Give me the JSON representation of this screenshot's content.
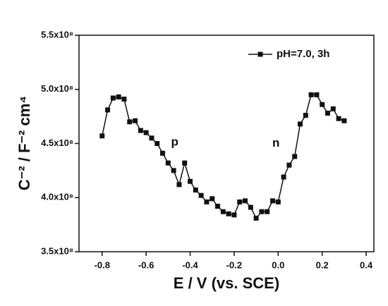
{
  "chart_data": {
    "type": "line",
    "x_label": "E / V (vs. SCE)",
    "y_label": "C⁻² / F⁻² cm⁴",
    "annotations": [
      {
        "text": "p",
        "x": -0.47,
        "y": 451000000
      },
      {
        "text": "n",
        "x": -0.01,
        "y": 450000000
      }
    ],
    "legend": "top-right",
    "x": [
      -0.8,
      -0.775,
      -0.75,
      -0.725,
      -0.7,
      -0.675,
      -0.65,
      -0.625,
      -0.6,
      -0.575,
      -0.55,
      -0.525,
      -0.5,
      -0.475,
      -0.45,
      -0.425,
      -0.4,
      -0.375,
      -0.35,
      -0.325,
      -0.3,
      -0.275,
      -0.25,
      -0.225,
      -0.2,
      -0.175,
      -0.15,
      -0.125,
      -0.1,
      -0.075,
      -0.05,
      -0.025,
      0,
      0.025,
      0.05,
      0.075,
      0.1,
      0.125,
      0.15,
      0.175,
      0.2,
      0.225,
      0.25,
      0.275,
      0.3
    ],
    "series": [
      {
        "name": "pH=7.0, 3h",
        "color": "#111111",
        "values": [
          457000000,
          481000000,
          492000000,
          493000000,
          491000000,
          470000000,
          471000000,
          462000000,
          460000000,
          455000000,
          450000000,
          441000000,
          432000000,
          425000000,
          412000000,
          432000000,
          415000000,
          407000000,
          402000000,
          396000000,
          399000000,
          392000000,
          387000000,
          385000000,
          384000000,
          396000000,
          397000000,
          391000000,
          381000000,
          387000000,
          387000000,
          397000000,
          396000000,
          419000000,
          430000000,
          438000000,
          468000000,
          476000000,
          495000000,
          495000000,
          486000000,
          478000000,
          482000000,
          473000000,
          471000000
        ]
      }
    ],
    "xlim": [
      -0.905,
      0.435
    ],
    "xticks": [
      -0.8,
      -0.6,
      -0.4,
      -0.2,
      {
        "value": 0,
        "label": "0.0"
      },
      0.2,
      0.4
    ],
    "ylim": [
      350000000,
      550000000
    ],
    "yticks": [
      {
        "value": 350000000,
        "label": "3.5x10⁸"
      },
      {
        "value": 400000000,
        "label": "4.0x10⁸"
      },
      {
        "value": 450000000,
        "label": "4.5x10⁸"
      },
      {
        "value": 500000000,
        "label": "5.0x10⁸"
      },
      {
        "value": 550000000,
        "label": "5.5x10⁸"
      }
    ]
  }
}
